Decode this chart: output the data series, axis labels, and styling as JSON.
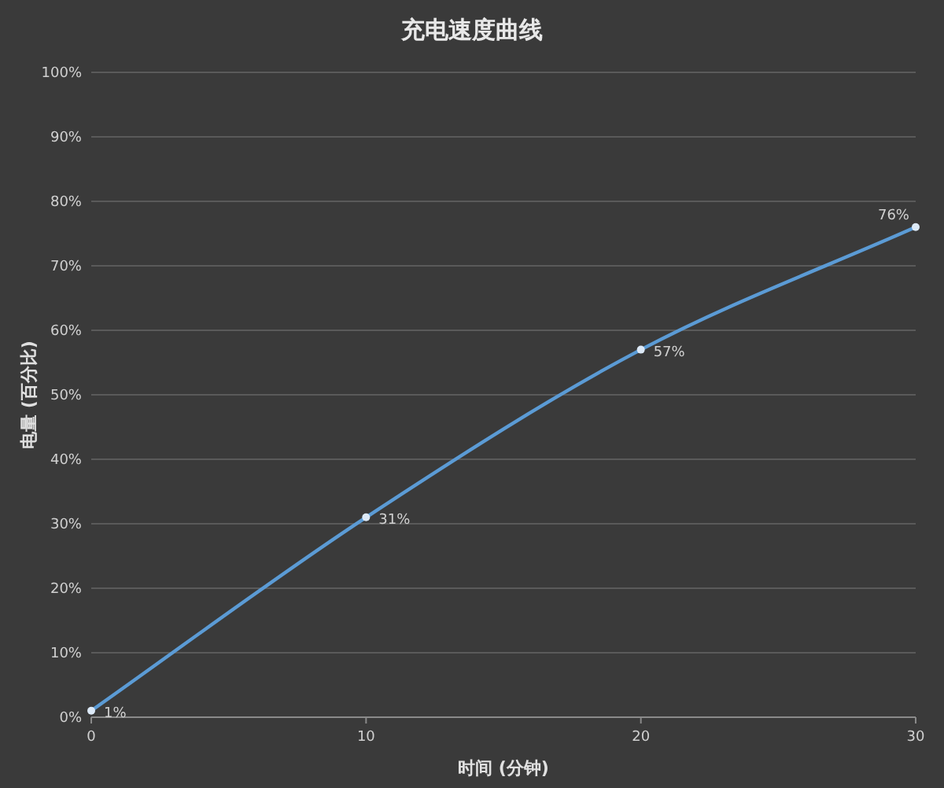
{
  "chart_data": {
    "type": "line",
    "title": "充电速度曲线",
    "xlabel": "时间 (分钟)",
    "ylabel": "电量 (百分比)",
    "x": [
      0,
      10,
      20,
      30
    ],
    "series": [
      {
        "color": "#5b9bd5",
        "values": [
          1,
          31,
          57,
          76
        ],
        "value_labels": [
          "1%",
          "31%",
          "57%",
          "76%"
        ]
      }
    ],
    "xlim": [
      0,
      30
    ],
    "xticks": [
      0,
      10,
      20,
      30
    ],
    "ylim": [
      0,
      100
    ],
    "yticks": [
      {
        "value": 0,
        "label": "0%"
      },
      {
        "value": 10,
        "label": "10%"
      },
      {
        "value": 20,
        "label": "20%"
      },
      {
        "value": 30,
        "label": "30%"
      },
      {
        "value": 40,
        "label": "40%"
      },
      {
        "value": 50,
        "label": "50%"
      },
      {
        "value": 60,
        "label": "60%"
      },
      {
        "value": 70,
        "label": "70%"
      },
      {
        "value": 80,
        "label": "80%"
      },
      {
        "value": 90,
        "label": "90%"
      },
      {
        "value": 100,
        "label": "100%"
      }
    ],
    "grid": "y",
    "marker": "circle",
    "line_style": "solid"
  }
}
